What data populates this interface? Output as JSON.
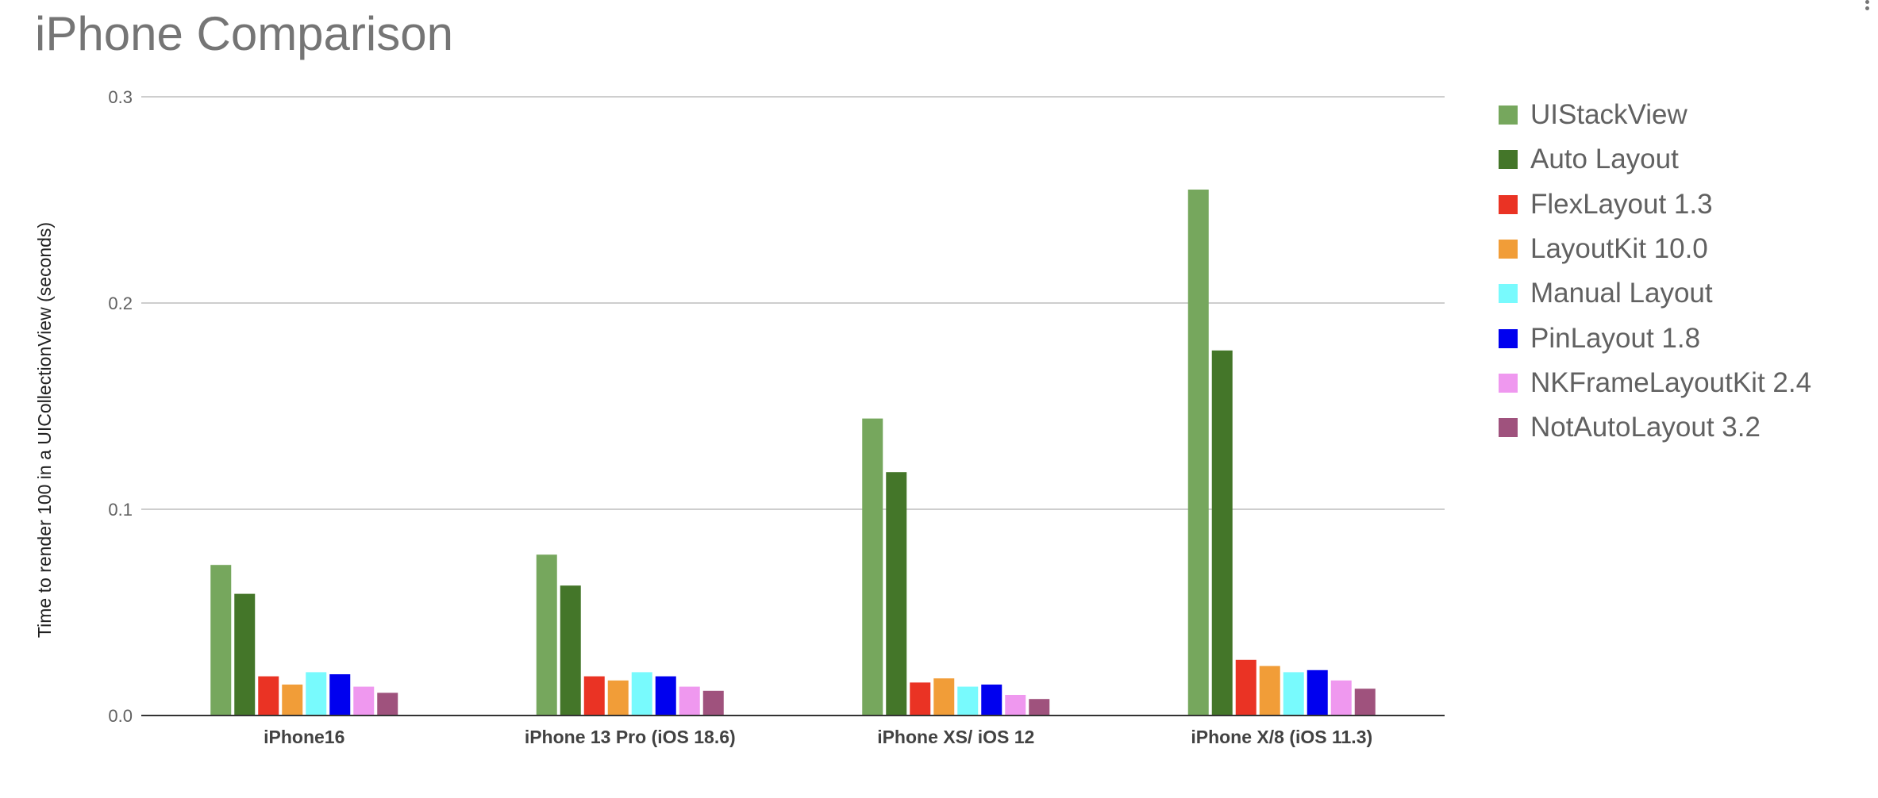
{
  "chart_data": {
    "type": "bar",
    "title": "iPhone Comparison",
    "xlabel": "",
    "ylabel": "Time to  render 100 in a UICollectionView (seconds)",
    "ylim": [
      0,
      0.3
    ],
    "yticks": [
      "0.0",
      "0.1",
      "0.2",
      "0.3"
    ],
    "grid": true,
    "legend_position": "right",
    "categories": [
      "iPhone16",
      "iPhone 13 Pro (iOS 18.6)",
      "iPhone XS/ iOS 12",
      "iPhone X/8 (iOS 11.3)"
    ],
    "series": [
      {
        "name": "UIStackView",
        "color": "#76a75d",
        "values": [
          0.073,
          0.078,
          0.144,
          0.255
        ]
      },
      {
        "name": "Auto Layout",
        "color": "#447629",
        "values": [
          0.059,
          0.063,
          0.118,
          0.177
        ]
      },
      {
        "name": "FlexLayout 1.3",
        "color": "#ea3324",
        "values": [
          0.019,
          0.019,
          0.016,
          0.027
        ]
      },
      {
        "name": "LayoutKit 10.0",
        "color": "#f19d38",
        "values": [
          0.015,
          0.017,
          0.018,
          0.024
        ]
      },
      {
        "name": "Manual Layout",
        "color": "#78fafd",
        "values": [
          0.021,
          0.021,
          0.014,
          0.021
        ]
      },
      {
        "name": "PinLayout 1.8",
        "color": "#0000ef",
        "values": [
          0.02,
          0.019,
          0.015,
          0.022
        ]
      },
      {
        "name": "NKFrameLayoutKit 2.4",
        "color": "#ef98ef",
        "values": [
          0.014,
          0.014,
          0.01,
          0.017
        ]
      },
      {
        "name": "NotAutoLayout 3.2",
        "color": "#9f527d",
        "values": [
          0.011,
          0.012,
          0.008,
          0.013
        ]
      }
    ]
  }
}
